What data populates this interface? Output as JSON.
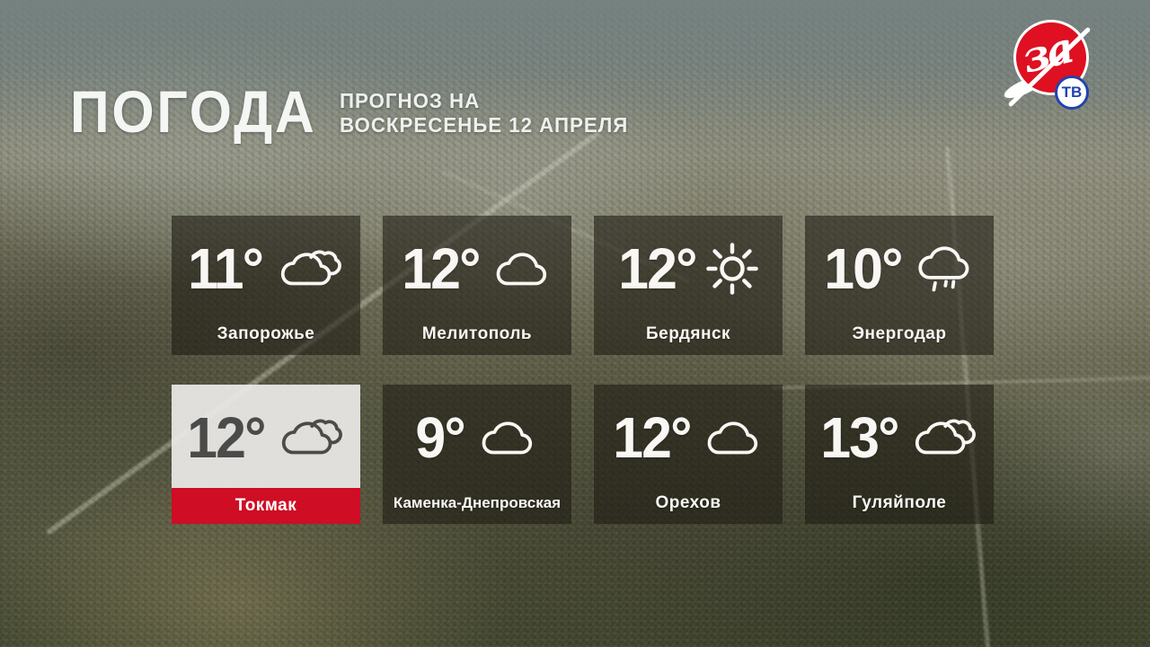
{
  "header": {
    "title": "ПОГОДА",
    "subtitle_line1": "ПРОГНОЗ НА",
    "subtitle_line2": "ВОСКРЕСЕНЬЕ 12 АПРЕЛЯ"
  },
  "logo": {
    "script_text": "за",
    "badge_text": "ТВ"
  },
  "colors": {
    "accent_red": "#cf0d24",
    "logo_red": "#de1021",
    "badge_blue": "#2242ad",
    "card_dark": "rgba(32,28,20,0.60)",
    "card_light": "rgba(235,234,231,0.93)"
  },
  "cards": [
    {
      "temp": "11°",
      "city": "Запорожье",
      "icon": "clouds",
      "highlighted": false
    },
    {
      "temp": "12°",
      "city": "Мелитополь",
      "icon": "cloud",
      "highlighted": false
    },
    {
      "temp": "12°",
      "city": "Бердянск",
      "icon": "sun",
      "highlighted": false
    },
    {
      "temp": "10°",
      "city": "Энергодар",
      "icon": "rain",
      "highlighted": false
    },
    {
      "temp": "12°",
      "city": "Токмак",
      "icon": "clouds",
      "highlighted": true
    },
    {
      "temp": "9°",
      "city": "Каменка-Днепровская",
      "icon": "cloud",
      "highlighted": false
    },
    {
      "temp": "12°",
      "city": "Орехов",
      "icon": "cloud",
      "highlighted": false
    },
    {
      "temp": "13°",
      "city": "Гуляйполе",
      "icon": "clouds",
      "highlighted": false
    }
  ]
}
